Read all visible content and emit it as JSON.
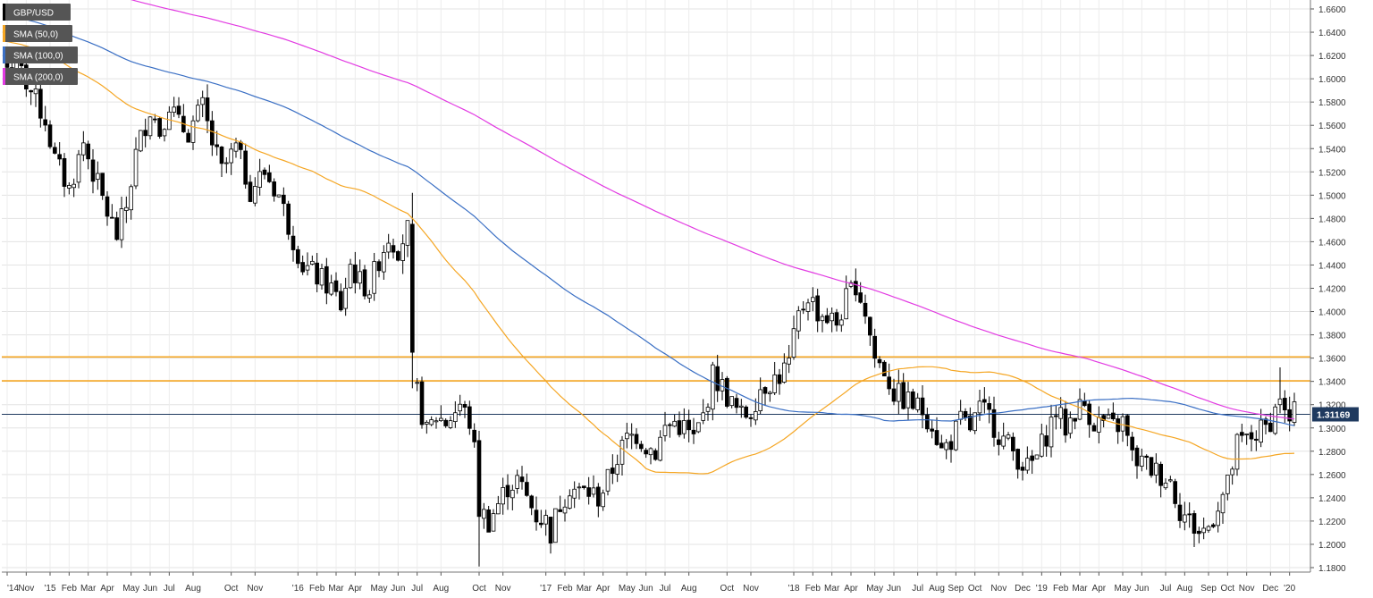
{
  "chart_data": {
    "type": "candlestick",
    "symbol": "GBP/USD",
    "legend": [
      {
        "label": "GBP/USD",
        "color": "#000000"
      },
      {
        "label": "SMA (50,0)",
        "color": "#f5a623"
      },
      {
        "label": "SMA (100,0)",
        "color": "#3a6fc4"
      },
      {
        "label": "SMA (200,0)",
        "color": "#e23be2"
      }
    ],
    "y_axis": {
      "min": 1.17,
      "max": 1.67,
      "ticks": [
        "1.6600",
        "1.6400",
        "1.6200",
        "1.6000",
        "1.5800",
        "1.5600",
        "1.5400",
        "1.5200",
        "1.5000",
        "1.4800",
        "1.4600",
        "1.4400",
        "1.4200",
        "1.4000",
        "1.3800",
        "1.3600",
        "1.3400",
        "1.3200",
        "1.3000",
        "1.2800",
        "1.2600",
        "1.2400",
        "1.2200",
        "1.2000",
        "1.1800"
      ]
    },
    "x_axis": {
      "labels": [
        {
          "text": "'14",
          "week": 0
        },
        {
          "text": "Nov",
          "week": 4
        },
        {
          "text": "'15",
          "week": 9
        },
        {
          "text": "Feb",
          "week": 13
        },
        {
          "text": "Mar",
          "week": 17
        },
        {
          "text": "Apr",
          "week": 21
        },
        {
          "text": "May",
          "week": 26
        },
        {
          "text": "Jun",
          "week": 30
        },
        {
          "text": "Jul",
          "week": 34
        },
        {
          "text": "Aug",
          "week": 39
        },
        {
          "text": "Oct",
          "week": 47
        },
        {
          "text": "Nov",
          "week": 52
        },
        {
          "text": "'16",
          "week": 61
        },
        {
          "text": "Feb",
          "week": 65
        },
        {
          "text": "Mar",
          "week": 69
        },
        {
          "text": "Apr",
          "week": 73
        },
        {
          "text": "May",
          "week": 78
        },
        {
          "text": "Jun",
          "week": 82
        },
        {
          "text": "Jul",
          "week": 86
        },
        {
          "text": "Aug",
          "week": 91
        },
        {
          "text": "Oct",
          "week": 99
        },
        {
          "text": "Nov",
          "week": 104
        },
        {
          "text": "'17",
          "week": 113
        },
        {
          "text": "Feb",
          "week": 117
        },
        {
          "text": "Mar",
          "week": 121
        },
        {
          "text": "Apr",
          "week": 125
        },
        {
          "text": "May",
          "week": 130
        },
        {
          "text": "Jun",
          "week": 134
        },
        {
          "text": "Jul",
          "week": 138
        },
        {
          "text": "Aug",
          "week": 143
        },
        {
          "text": "Oct",
          "week": 151
        },
        {
          "text": "Nov",
          "week": 156
        },
        {
          "text": "'18",
          "week": 165
        },
        {
          "text": "Feb",
          "week": 169
        },
        {
          "text": "Mar",
          "week": 173
        },
        {
          "text": "Apr",
          "week": 177
        },
        {
          "text": "May",
          "week": 182
        },
        {
          "text": "Jun",
          "week": 186
        },
        {
          "text": "Jul",
          "week": 191
        },
        {
          "text": "Aug",
          "week": 195
        },
        {
          "text": "Sep",
          "week": 199
        },
        {
          "text": "Oct",
          "week": 203
        },
        {
          "text": "Nov",
          "week": 208
        },
        {
          "text": "Dec",
          "week": 213
        },
        {
          "text": "'19",
          "week": 217
        },
        {
          "text": "Feb",
          "week": 221
        },
        {
          "text": "Mar",
          "week": 225
        },
        {
          "text": "Apr",
          "week": 229
        },
        {
          "text": "May",
          "week": 234
        },
        {
          "text": "Jun",
          "week": 238
        },
        {
          "text": "Jul",
          "week": 243
        },
        {
          "text": "Aug",
          "week": 247
        },
        {
          "text": "Sep",
          "week": 252
        },
        {
          "text": "Oct",
          "week": 256
        },
        {
          "text": "Nov",
          "week": 260
        },
        {
          "text": "Dec",
          "week": 265
        },
        {
          "text": "'20",
          "week": 269
        }
      ]
    },
    "horizontal_levels": [
      {
        "value": 1.361,
        "color": "#f5a623"
      },
      {
        "value": 1.3405,
        "color": "#f5a623"
      }
    ],
    "current_price": {
      "value": 1.3117,
      "label": "1.31169",
      "color": "#1f3a5f"
    },
    "price_anchors": [
      [
        0,
        1.61
      ],
      [
        3,
        1.605
      ],
      [
        8,
        1.565
      ],
      [
        10,
        1.53
      ],
      [
        13,
        1.505
      ],
      [
        16,
        1.545
      ],
      [
        18,
        1.52
      ],
      [
        21,
        1.485
      ],
      [
        23,
        1.465
      ],
      [
        25,
        1.49
      ],
      [
        27,
        1.535
      ],
      [
        30,
        1.575
      ],
      [
        32,
        1.555
      ],
      [
        34,
        1.58
      ],
      [
        36,
        1.56
      ],
      [
        38,
        1.555
      ],
      [
        41,
        1.575
      ],
      [
        43,
        1.545
      ],
      [
        45,
        1.52
      ],
      [
        48,
        1.54
      ],
      [
        51,
        1.505
      ],
      [
        54,
        1.52
      ],
      [
        57,
        1.5
      ],
      [
        59,
        1.475
      ],
      [
        62,
        1.44
      ],
      [
        65,
        1.43
      ],
      [
        68,
        1.42
      ],
      [
        70,
        1.405
      ],
      [
        72,
        1.44
      ],
      [
        74,
        1.425
      ],
      [
        76,
        1.42
      ],
      [
        78,
        1.445
      ],
      [
        80,
        1.465
      ],
      [
        82,
        1.455
      ],
      [
        84,
        1.47
      ],
      [
        85,
        1.33
      ],
      [
        86,
        1.33
      ],
      [
        88,
        1.295
      ],
      [
        90,
        1.31
      ],
      [
        92,
        1.305
      ],
      [
        95,
        1.32
      ],
      [
        97,
        1.305
      ],
      [
        98,
        1.28
      ],
      [
        99,
        1.23
      ],
      [
        101,
        1.22
      ],
      [
        103,
        1.235
      ],
      [
        105,
        1.25
      ],
      [
        107,
        1.255
      ],
      [
        109,
        1.24
      ],
      [
        111,
        1.225
      ],
      [
        113,
        1.22
      ],
      [
        114,
        1.21
      ],
      [
        116,
        1.235
      ],
      [
        118,
        1.25
      ],
      [
        120,
        1.245
      ],
      [
        122,
        1.245
      ],
      [
        124,
        1.24
      ],
      [
        126,
        1.255
      ],
      [
        128,
        1.275
      ],
      [
        130,
        1.29
      ],
      [
        132,
        1.295
      ],
      [
        134,
        1.285
      ],
      [
        136,
        1.28
      ],
      [
        138,
        1.3
      ],
      [
        140,
        1.305
      ],
      [
        142,
        1.3
      ],
      [
        144,
        1.29
      ],
      [
        146,
        1.31
      ],
      [
        148,
        1.345
      ],
      [
        150,
        1.335
      ],
      [
        152,
        1.32
      ],
      [
        154,
        1.31
      ],
      [
        156,
        1.315
      ],
      [
        158,
        1.335
      ],
      [
        160,
        1.34
      ],
      [
        162,
        1.345
      ],
      [
        164,
        1.355
      ],
      [
        166,
        1.395
      ],
      [
        168,
        1.415
      ],
      [
        170,
        1.4
      ],
      [
        172,
        1.395
      ],
      [
        174,
        1.39
      ],
      [
        176,
        1.41
      ],
      [
        178,
        1.425
      ],
      [
        180,
        1.4
      ],
      [
        182,
        1.36
      ],
      [
        184,
        1.35
      ],
      [
        186,
        1.33
      ],
      [
        188,
        1.325
      ],
      [
        190,
        1.32
      ],
      [
        192,
        1.315
      ],
      [
        194,
        1.305
      ],
      [
        196,
        1.28
      ],
      [
        198,
        1.29
      ],
      [
        200,
        1.305
      ],
      [
        202,
        1.3
      ],
      [
        204,
        1.315
      ],
      [
        206,
        1.31
      ],
      [
        208,
        1.295
      ],
      [
        210,
        1.285
      ],
      [
        212,
        1.275
      ],
      [
        214,
        1.265
      ],
      [
        216,
        1.275
      ],
      [
        218,
        1.295
      ],
      [
        220,
        1.315
      ],
      [
        222,
        1.3
      ],
      [
        224,
        1.315
      ],
      [
        226,
        1.32
      ],
      [
        228,
        1.305
      ],
      [
        230,
        1.305
      ],
      [
        232,
        1.3
      ],
      [
        234,
        1.305
      ],
      [
        236,
        1.275
      ],
      [
        238,
        1.27
      ],
      [
        240,
        1.265
      ],
      [
        242,
        1.26
      ],
      [
        244,
        1.255
      ],
      [
        246,
        1.23
      ],
      [
        248,
        1.22
      ],
      [
        250,
        1.21
      ],
      [
        252,
        1.215
      ],
      [
        254,
        1.235
      ],
      [
        256,
        1.25
      ],
      [
        258,
        1.285
      ],
      [
        260,
        1.29
      ],
      [
        262,
        1.295
      ],
      [
        264,
        1.3
      ],
      [
        266,
        1.315
      ],
      [
        267,
        1.33
      ],
      [
        268,
        1.31
      ],
      [
        269,
        1.305
      ],
      [
        270,
        1.312
      ]
    ]
  }
}
